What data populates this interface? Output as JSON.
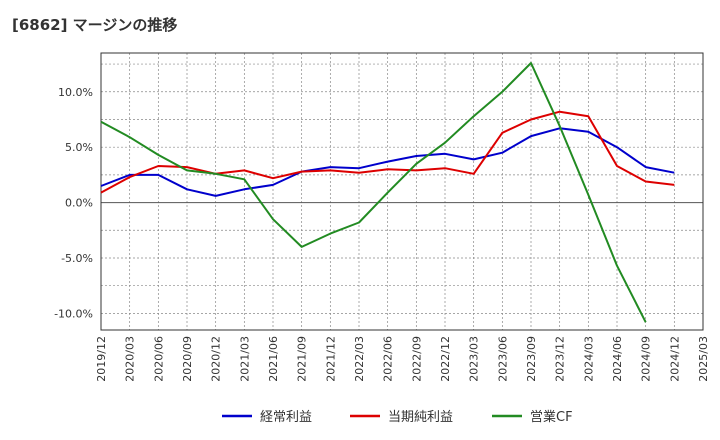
{
  "title": "[6862]  マージンの推移",
  "chart_data": {
    "type": "line",
    "x": [
      "2019/12",
      "2020/03",
      "2020/06",
      "2020/09",
      "2020/12",
      "2021/03",
      "2021/06",
      "2021/09",
      "2021/12",
      "2022/03",
      "2022/06",
      "2022/09",
      "2022/12",
      "2023/03",
      "2023/06",
      "2023/09",
      "2023/12",
      "2024/03",
      "2024/06",
      "2024/09",
      "2024/12",
      "2025/03"
    ],
    "ylim": [
      -11.5,
      13.5
    ],
    "yticks": [
      10,
      5,
      0,
      -5,
      -10
    ],
    "ytick_labels": [
      "10.0%",
      "5.0%",
      "0.0%",
      "-5.0%",
      "-10.0%"
    ],
    "grid": true,
    "legend_position": "bottom",
    "series": [
      {
        "name": "経常利益",
        "color": "#0000cc",
        "values": [
          1.5,
          2.5,
          2.5,
          1.2,
          0.6,
          1.2,
          1.6,
          2.8,
          3.2,
          3.1,
          3.7,
          4.2,
          4.4,
          3.9,
          4.5,
          6.0,
          6.7,
          6.4,
          5.0,
          3.2,
          2.7,
          null
        ]
      },
      {
        "name": "当期純利益",
        "color": "#dd0000",
        "values": [
          0.9,
          2.3,
          3.3,
          3.2,
          2.6,
          2.9,
          2.2,
          2.8,
          2.9,
          2.7,
          3.0,
          2.9,
          3.1,
          2.6,
          6.3,
          7.5,
          8.2,
          7.8,
          3.3,
          1.9,
          1.6,
          null
        ]
      },
      {
        "name": "営業CF",
        "color": "#228b22",
        "values": [
          7.3,
          5.9,
          4.3,
          2.9,
          2.6,
          2.1,
          -1.5,
          -4.0,
          -2.8,
          -1.8,
          0.9,
          3.5,
          5.4,
          7.8,
          10.0,
          12.6,
          6.9,
          0.7,
          -5.7,
          -10.8,
          null,
          null
        ]
      }
    ]
  }
}
